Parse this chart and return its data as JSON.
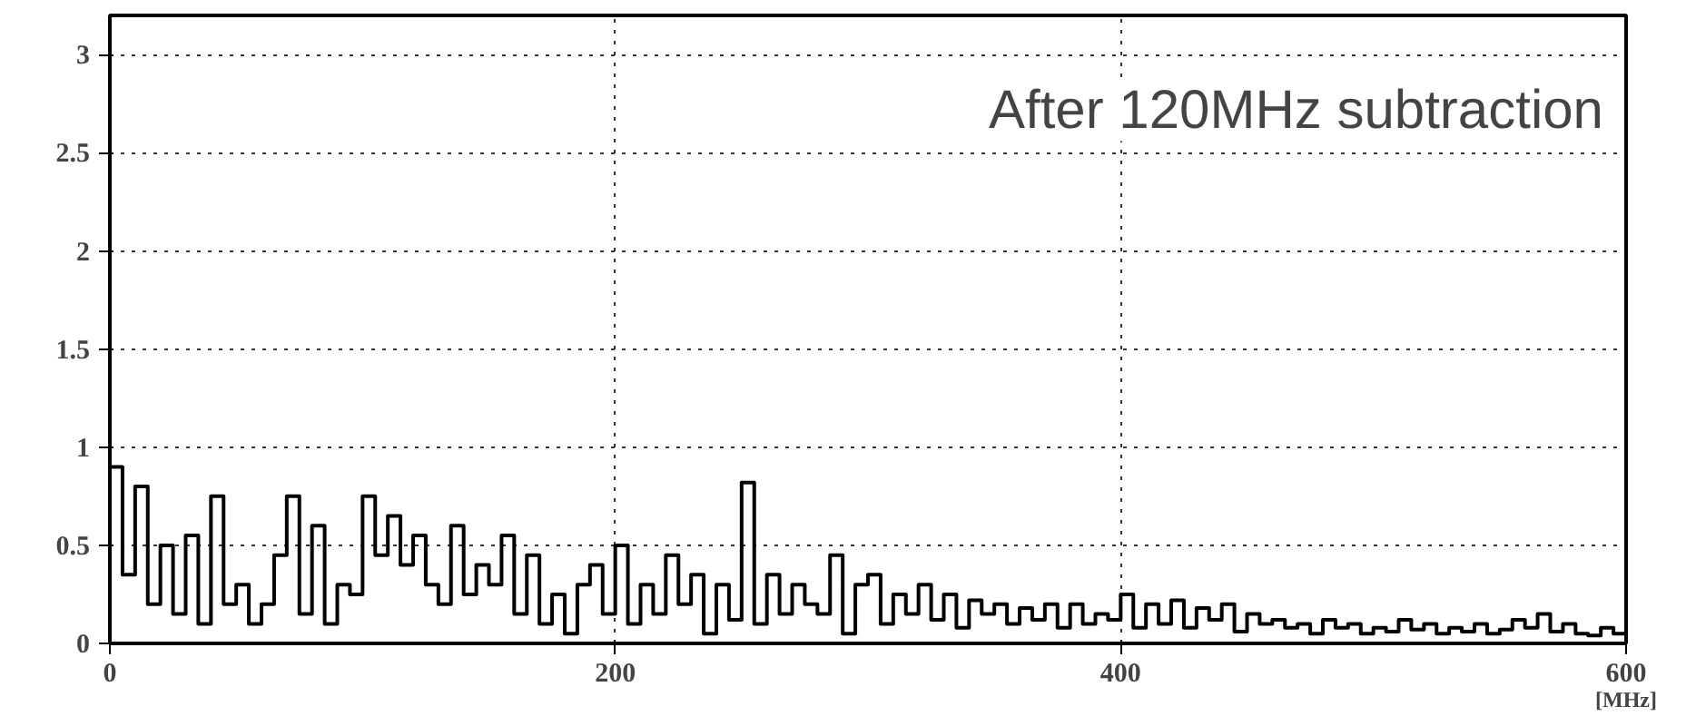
{
  "chart_data": {
    "type": "step",
    "xlabel": "[MHz]",
    "annotations": [
      "After 120MHz subtraction"
    ],
    "x": [
      0,
      5,
      10,
      15,
      20,
      25,
      30,
      35,
      40,
      45,
      50,
      55,
      60,
      65,
      70,
      75,
      80,
      85,
      90,
      95,
      100,
      105,
      110,
      115,
      120,
      125,
      130,
      135,
      140,
      145,
      150,
      155,
      160,
      165,
      170,
      175,
      180,
      185,
      190,
      195,
      200,
      205,
      210,
      215,
      220,
      225,
      230,
      235,
      240,
      245,
      250,
      255,
      260,
      265,
      270,
      275,
      280,
      285,
      290,
      295,
      300,
      305,
      310,
      315,
      320,
      325,
      330,
      335,
      340,
      345,
      350,
      355,
      360,
      365,
      370,
      375,
      380,
      385,
      390,
      395,
      400,
      405,
      410,
      415,
      420,
      425,
      430,
      435,
      440,
      445,
      450,
      455,
      460,
      465,
      470,
      475,
      480,
      485,
      490,
      495,
      500,
      505,
      510,
      515,
      520,
      525,
      530,
      535,
      540,
      545,
      550,
      555,
      560,
      565,
      570,
      575,
      580,
      585,
      590,
      595,
      600
    ],
    "series": [
      {
        "color": "#000000",
        "values": [
          0.9,
          0.35,
          0.8,
          0.2,
          0.5,
          0.15,
          0.55,
          0.1,
          0.75,
          0.2,
          0.3,
          0.1,
          0.2,
          0.45,
          0.75,
          0.15,
          0.6,
          0.1,
          0.3,
          0.25,
          0.75,
          0.45,
          0.65,
          0.4,
          0.55,
          0.3,
          0.2,
          0.6,
          0.25,
          0.4,
          0.3,
          0.55,
          0.15,
          0.45,
          0.1,
          0.25,
          0.05,
          0.3,
          0.4,
          0.15,
          0.5,
          0.1,
          0.3,
          0.15,
          0.45,
          0.2,
          0.35,
          0.05,
          0.3,
          0.12,
          0.82,
          0.1,
          0.35,
          0.15,
          0.3,
          0.2,
          0.15,
          0.45,
          0.05,
          0.3,
          0.35,
          0.1,
          0.25,
          0.15,
          0.3,
          0.12,
          0.25,
          0.08,
          0.22,
          0.15,
          0.2,
          0.1,
          0.18,
          0.12,
          0.2,
          0.08,
          0.2,
          0.1,
          0.15,
          0.12,
          0.25,
          0.08,
          0.2,
          0.1,
          0.22,
          0.08,
          0.18,
          0.12,
          0.2,
          0.06,
          0.15,
          0.1,
          0.12,
          0.08,
          0.1,
          0.05,
          0.12,
          0.08,
          0.1,
          0.05,
          0.08,
          0.06,
          0.12,
          0.07,
          0.1,
          0.05,
          0.08,
          0.06,
          0.1,
          0.05,
          0.07,
          0.12,
          0.08,
          0.15,
          0.06,
          0.1,
          0.05,
          0.04,
          0.08,
          0.05,
          0.05
        ]
      }
    ],
    "xlim": [
      0,
      600
    ],
    "ylim": [
      0,
      3.2
    ],
    "xticks": [
      0,
      200,
      400,
      600
    ],
    "yticks": [
      0,
      0.5,
      1,
      1.5,
      2,
      2.5,
      3
    ],
    "grid": true,
    "line_style": "solid"
  }
}
